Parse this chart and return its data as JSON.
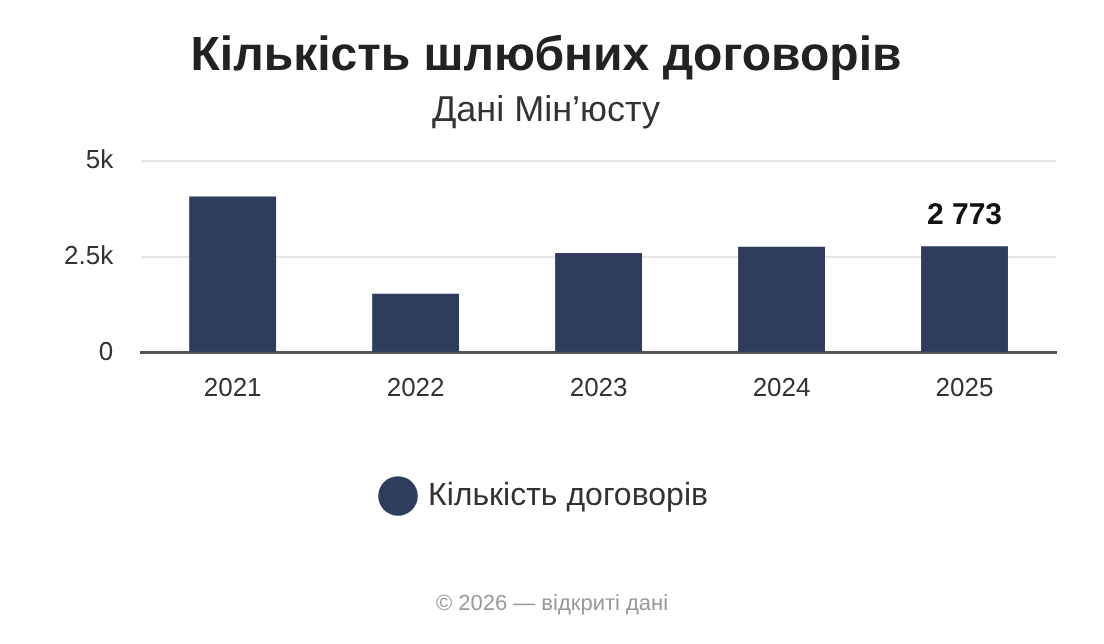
{
  "chart_data": {
    "type": "bar",
    "title": "Кількість шлюбних договорів",
    "subtitle": "Дані Мін’юсту",
    "categories": [
      "2021",
      "2022",
      "2023",
      "2024",
      "2025"
    ],
    "series": [
      {
        "name": "Кількість договорів",
        "color": "#2e3d5e",
        "values": [
          4070,
          1540,
          2600,
          2760,
          2773
        ],
        "value_labels": [
          null,
          null,
          null,
          null,
          "2 773"
        ]
      }
    ],
    "ylim": [
      0,
      5000
    ],
    "yticks": [
      {
        "value": 0,
        "label": "0"
      },
      {
        "value": 2500,
        "label": "2.5k"
      },
      {
        "value": 5000,
        "label": "5k"
      }
    ],
    "grid": "y",
    "legend": "bottom",
    "annotations": [
      "© 2026 — відкриті дані"
    ]
  }
}
